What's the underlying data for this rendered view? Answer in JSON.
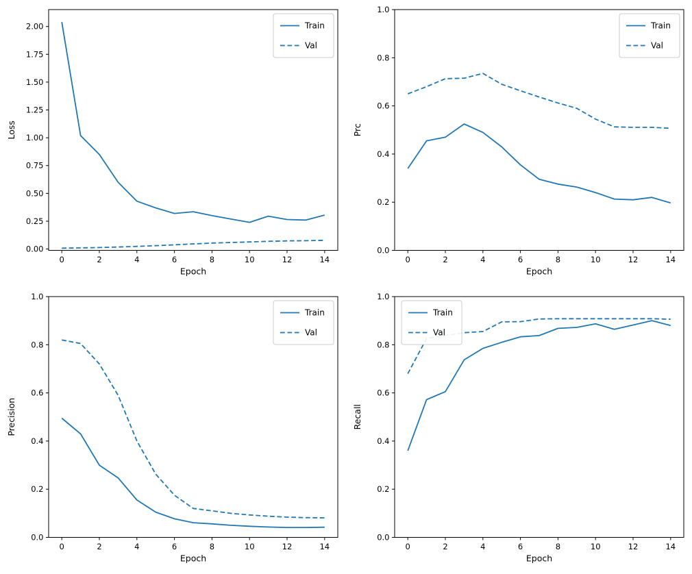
{
  "figure": {
    "background": "#ffffff",
    "line_color": "#1f77b4",
    "axis_color": "#000000",
    "legend_border_color": "#cccccc",
    "legend_bg_color": "#ffffff"
  },
  "chart_data": [
    {
      "type": "line",
      "id": "loss",
      "title": "",
      "xlabel": "Epoch",
      "ylabel": "Loss",
      "x": [
        0,
        1,
        2,
        3,
        4,
        5,
        6,
        7,
        8,
        9,
        10,
        11,
        12,
        13,
        14
      ],
      "series": [
        {
          "name": "Train",
          "linestyle": "solid",
          "values": [
            2.04,
            1.02,
            0.85,
            0.6,
            0.43,
            0.37,
            0.32,
            0.335,
            0.3,
            0.27,
            0.24,
            0.295,
            0.265,
            0.26,
            0.305
          ]
        },
        {
          "name": "Val",
          "linestyle": "dashed",
          "values": [
            0.008,
            0.01,
            0.013,
            0.018,
            0.024,
            0.03,
            0.038,
            0.046,
            0.053,
            0.059,
            0.064,
            0.069,
            0.073,
            0.075,
            0.078
          ]
        }
      ],
      "xlim": [
        -0.7,
        14.7
      ],
      "ylim": [
        -0.012,
        2.152
      ],
      "xticks": [
        0,
        2,
        4,
        6,
        8,
        10,
        12,
        14
      ],
      "xtick_labels": [
        "0",
        "2",
        "4",
        "6",
        "8",
        "10",
        "12",
        "14"
      ],
      "yticks": [
        0.0,
        0.25,
        0.5,
        0.75,
        1.0,
        1.25,
        1.5,
        1.75,
        2.0
      ],
      "ytick_labels": [
        "0.00",
        "0.25",
        "0.50",
        "0.75",
        "1.00",
        "1.25",
        "1.50",
        "1.75",
        "2.00"
      ],
      "legend": [
        "Train",
        "Val"
      ],
      "legend_loc": "upper-right",
      "grid": false
    },
    {
      "type": "line",
      "id": "prc",
      "title": "",
      "xlabel": "Epoch",
      "ylabel": "Prc",
      "x": [
        0,
        1,
        2,
        3,
        4,
        5,
        6,
        7,
        8,
        9,
        10,
        11,
        12,
        13,
        14
      ],
      "series": [
        {
          "name": "Train",
          "linestyle": "solid",
          "values": [
            0.34,
            0.455,
            0.47,
            0.525,
            0.49,
            0.43,
            0.355,
            0.295,
            0.275,
            0.263,
            0.24,
            0.213,
            0.21,
            0.22,
            0.197
          ]
        },
        {
          "name": "Val",
          "linestyle": "dashed",
          "values": [
            0.65,
            0.68,
            0.713,
            0.715,
            0.735,
            0.69,
            0.663,
            0.637,
            0.612,
            0.59,
            0.545,
            0.513,
            0.511,
            0.511,
            0.507
          ]
        }
      ],
      "xlim": [
        -0.7,
        14.7
      ],
      "ylim": [
        0.0,
        1.0
      ],
      "xticks": [
        0,
        2,
        4,
        6,
        8,
        10,
        12,
        14
      ],
      "xtick_labels": [
        "0",
        "2",
        "4",
        "6",
        "8",
        "10",
        "12",
        "14"
      ],
      "yticks": [
        0.0,
        0.2,
        0.4,
        0.6,
        0.8,
        1.0
      ],
      "ytick_labels": [
        "0.0",
        "0.2",
        "0.4",
        "0.6",
        "0.8",
        "1.0"
      ],
      "legend": [
        "Train",
        "Val"
      ],
      "legend_loc": "upper-right",
      "grid": false
    },
    {
      "type": "line",
      "id": "precision",
      "title": "",
      "xlabel": "Epoch",
      "ylabel": "Precision",
      "x": [
        0,
        1,
        2,
        3,
        4,
        5,
        6,
        7,
        8,
        9,
        10,
        11,
        12,
        13,
        14
      ],
      "series": [
        {
          "name": "Train",
          "linestyle": "solid",
          "values": [
            0.495,
            0.43,
            0.3,
            0.247,
            0.155,
            0.105,
            0.077,
            0.061,
            0.056,
            0.05,
            0.046,
            0.043,
            0.041,
            0.041,
            0.042
          ]
        },
        {
          "name": "Val",
          "linestyle": "dashed",
          "values": [
            0.82,
            0.805,
            0.72,
            0.59,
            0.4,
            0.263,
            0.175,
            0.12,
            0.11,
            0.1,
            0.093,
            0.088,
            0.084,
            0.082,
            0.081
          ]
        }
      ],
      "xlim": [
        -0.7,
        14.7
      ],
      "ylim": [
        0.0,
        1.0
      ],
      "xticks": [
        0,
        2,
        4,
        6,
        8,
        10,
        12,
        14
      ],
      "xtick_labels": [
        "0",
        "2",
        "4",
        "6",
        "8",
        "10",
        "12",
        "14"
      ],
      "yticks": [
        0.0,
        0.2,
        0.4,
        0.6,
        0.8,
        1.0
      ],
      "ytick_labels": [
        "0.0",
        "0.2",
        "0.4",
        "0.6",
        "0.8",
        "1.0"
      ],
      "legend": [
        "Train",
        "Val"
      ],
      "legend_loc": "upper-right",
      "grid": false
    },
    {
      "type": "line",
      "id": "recall",
      "title": "",
      "xlabel": "Epoch",
      "ylabel": "Recall",
      "x": [
        0,
        1,
        2,
        3,
        4,
        5,
        6,
        7,
        8,
        9,
        10,
        11,
        12,
        13,
        14
      ],
      "series": [
        {
          "name": "Train",
          "linestyle": "solid",
          "values": [
            0.36,
            0.572,
            0.605,
            0.737,
            0.785,
            0.81,
            0.833,
            0.838,
            0.868,
            0.872,
            0.887,
            0.864,
            0.882,
            0.9,
            0.88
          ]
        },
        {
          "name": "Val",
          "linestyle": "dashed",
          "values": [
            0.68,
            0.826,
            0.838,
            0.85,
            0.855,
            0.895,
            0.896,
            0.907,
            0.908,
            0.908,
            0.908,
            0.908,
            0.908,
            0.908,
            0.906
          ]
        }
      ],
      "xlim": [
        -0.7,
        14.7
      ],
      "ylim": [
        0.0,
        1.0
      ],
      "xticks": [
        0,
        2,
        4,
        6,
        8,
        10,
        12,
        14
      ],
      "xtick_labels": [
        "0",
        "2",
        "4",
        "6",
        "8",
        "10",
        "12",
        "14"
      ],
      "yticks": [
        0.0,
        0.2,
        0.4,
        0.6,
        0.8,
        1.0
      ],
      "ytick_labels": [
        "0.0",
        "0.2",
        "0.4",
        "0.6",
        "0.8",
        "1.0"
      ],
      "legend": [
        "Train",
        "Val"
      ],
      "legend_loc": "upper-left",
      "grid": false
    }
  ]
}
